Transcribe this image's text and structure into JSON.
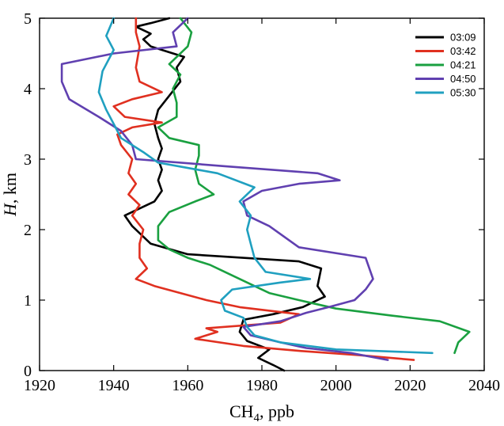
{
  "chart_data": {
    "type": "line",
    "title": "",
    "xlabel": "CH",
    "xlabel_sub": "4",
    "xlabel_unit": ", ppb",
    "ylabel": "H",
    "ylabel_unit": ", km",
    "xlim": [
      1920,
      2040
    ],
    "ylim": [
      0,
      5
    ],
    "x_ticks": [
      1920,
      1940,
      1960,
      1980,
      2000,
      2020,
      2040
    ],
    "y_ticks": [
      0,
      1,
      2,
      3,
      4,
      5
    ],
    "grid": false,
    "legend_position": "top-right",
    "series": [
      {
        "name": "03:09",
        "color": "#000000",
        "points": [
          [
            1986,
            0.0
          ],
          [
            1983,
            0.08
          ],
          [
            1979,
            0.18
          ],
          [
            1982,
            0.3
          ],
          [
            1976,
            0.42
          ],
          [
            1974,
            0.55
          ],
          [
            1975,
            0.72
          ],
          [
            1983,
            0.8
          ],
          [
            1991,
            0.9
          ],
          [
            1997,
            1.05
          ],
          [
            1995,
            1.2
          ],
          [
            1996,
            1.45
          ],
          [
            1990,
            1.55
          ],
          [
            1960,
            1.65
          ],
          [
            1950,
            1.8
          ],
          [
            1947,
            1.95
          ],
          [
            1945,
            2.05
          ],
          [
            1943,
            2.2
          ],
          [
            1947,
            2.3
          ],
          [
            1951,
            2.4
          ],
          [
            1953,
            2.55
          ],
          [
            1952,
            2.7
          ],
          [
            1953,
            2.85
          ],
          [
            1952,
            3.0
          ],
          [
            1953,
            3.15
          ],
          [
            1952,
            3.3
          ],
          [
            1951,
            3.5
          ],
          [
            1952,
            3.7
          ],
          [
            1955,
            3.9
          ],
          [
            1958,
            4.1
          ],
          [
            1957,
            4.3
          ],
          [
            1959,
            4.45
          ],
          [
            1950,
            4.6
          ],
          [
            1948,
            4.7
          ],
          [
            1950,
            4.78
          ],
          [
            1946,
            4.88
          ],
          [
            1950,
            4.93
          ],
          [
            1955,
            5.0
          ]
        ]
      },
      {
        "name": "03:42",
        "color": "#e03020",
        "points": [
          [
            2021,
            0.15
          ],
          [
            2006,
            0.22
          ],
          [
            1990,
            0.28
          ],
          [
            1975,
            0.35
          ],
          [
            1962,
            0.45
          ],
          [
            1968,
            0.55
          ],
          [
            1965,
            0.6
          ],
          [
            1985,
            0.68
          ],
          [
            1990,
            0.8
          ],
          [
            1974,
            0.9
          ],
          [
            1965,
            1.0
          ],
          [
            1958,
            1.1
          ],
          [
            1951,
            1.2
          ],
          [
            1946,
            1.3
          ],
          [
            1949,
            1.45
          ],
          [
            1947,
            1.6
          ],
          [
            1947,
            1.8
          ],
          [
            1948,
            2.0
          ],
          [
            1945,
            2.2
          ],
          [
            1947,
            2.35
          ],
          [
            1944,
            2.5
          ],
          [
            1946,
            2.65
          ],
          [
            1944,
            2.8
          ],
          [
            1945,
            3.0
          ],
          [
            1942,
            3.2
          ],
          [
            1941,
            3.35
          ],
          [
            1945,
            3.45
          ],
          [
            1953,
            3.52
          ],
          [
            1943,
            3.6
          ],
          [
            1940,
            3.75
          ],
          [
            1945,
            3.85
          ],
          [
            1953,
            3.95
          ],
          [
            1947,
            4.1
          ],
          [
            1946,
            4.3
          ],
          [
            1947,
            4.6
          ],
          [
            1946,
            4.8
          ],
          [
            1946,
            5.0
          ]
        ]
      },
      {
        "name": "04:21",
        "color": "#1aa040",
        "points": [
          [
            2032,
            0.25
          ],
          [
            2033,
            0.4
          ],
          [
            2036,
            0.55
          ],
          [
            2028,
            0.7
          ],
          [
            2015,
            0.78
          ],
          [
            2000,
            0.88
          ],
          [
            1990,
            1.0
          ],
          [
            1982,
            1.1
          ],
          [
            1978,
            1.2
          ],
          [
            1974,
            1.3
          ],
          [
            1970,
            1.4
          ],
          [
            1966,
            1.5
          ],
          [
            1960,
            1.6
          ],
          [
            1955,
            1.72
          ],
          [
            1952,
            1.85
          ],
          [
            1952,
            2.05
          ],
          [
            1955,
            2.25
          ],
          [
            1962,
            2.4
          ],
          [
            1967,
            2.5
          ],
          [
            1963,
            2.65
          ],
          [
            1962,
            2.85
          ],
          [
            1963,
            3.05
          ],
          [
            1963,
            3.2
          ],
          [
            1955,
            3.3
          ],
          [
            1952,
            3.45
          ],
          [
            1957,
            3.6
          ],
          [
            1957,
            3.8
          ],
          [
            1956,
            4.0
          ],
          [
            1958,
            4.2
          ],
          [
            1955,
            4.35
          ],
          [
            1960,
            4.6
          ],
          [
            1961,
            4.8
          ],
          [
            1958,
            5.0
          ]
        ]
      },
      {
        "name": "04:50",
        "color": "#6040b0",
        "points": [
          [
            2014,
            0.15
          ],
          [
            2004,
            0.25
          ],
          [
            1992,
            0.32
          ],
          [
            1985,
            0.4
          ],
          [
            1977,
            0.5
          ],
          [
            1975,
            0.62
          ],
          [
            1985,
            0.7
          ],
          [
            1992,
            0.82
          ],
          [
            1998,
            0.9
          ],
          [
            2005,
            1.0
          ],
          [
            2008,
            1.15
          ],
          [
            2010,
            1.3
          ],
          [
            2008,
            1.6
          ],
          [
            1990,
            1.75
          ],
          [
            1986,
            1.9
          ],
          [
            1982,
            2.05
          ],
          [
            1976,
            2.2
          ],
          [
            1975,
            2.4
          ],
          [
            1980,
            2.55
          ],
          [
            1990,
            2.65
          ],
          [
            2001,
            2.7
          ],
          [
            1995,
            2.8
          ],
          [
            1970,
            2.9
          ],
          [
            1946,
            3.0
          ],
          [
            1945,
            3.2
          ],
          [
            1942,
            3.4
          ],
          [
            1936,
            3.6
          ],
          [
            1928,
            3.85
          ],
          [
            1926,
            4.1
          ],
          [
            1926,
            4.35
          ],
          [
            1940,
            4.5
          ],
          [
            1957,
            4.6
          ],
          [
            1956,
            4.8
          ],
          [
            1960,
            5.0
          ]
        ]
      },
      {
        "name": "05:30",
        "color": "#20a0c0",
        "points": [
          [
            2026,
            0.25
          ],
          [
            2000,
            0.3
          ],
          [
            1985,
            0.4
          ],
          [
            1978,
            0.5
          ],
          [
            1976,
            0.62
          ],
          [
            1975,
            0.75
          ],
          [
            1970,
            0.85
          ],
          [
            1969,
            1.0
          ],
          [
            1972,
            1.15
          ],
          [
            1985,
            1.25
          ],
          [
            1993,
            1.3
          ],
          [
            1981,
            1.4
          ],
          [
            1978,
            1.6
          ],
          [
            1977,
            1.8
          ],
          [
            1976,
            2.0
          ],
          [
            1977,
            2.2
          ],
          [
            1974,
            2.4
          ],
          [
            1978,
            2.6
          ],
          [
            1968,
            2.8
          ],
          [
            1952,
            2.95
          ],
          [
            1948,
            3.1
          ],
          [
            1942,
            3.3
          ],
          [
            1940,
            3.5
          ],
          [
            1938,
            3.7
          ],
          [
            1936,
            3.95
          ],
          [
            1937,
            4.25
          ],
          [
            1940,
            4.55
          ],
          [
            1938,
            4.75
          ],
          [
            1940,
            5.0
          ]
        ]
      }
    ]
  }
}
